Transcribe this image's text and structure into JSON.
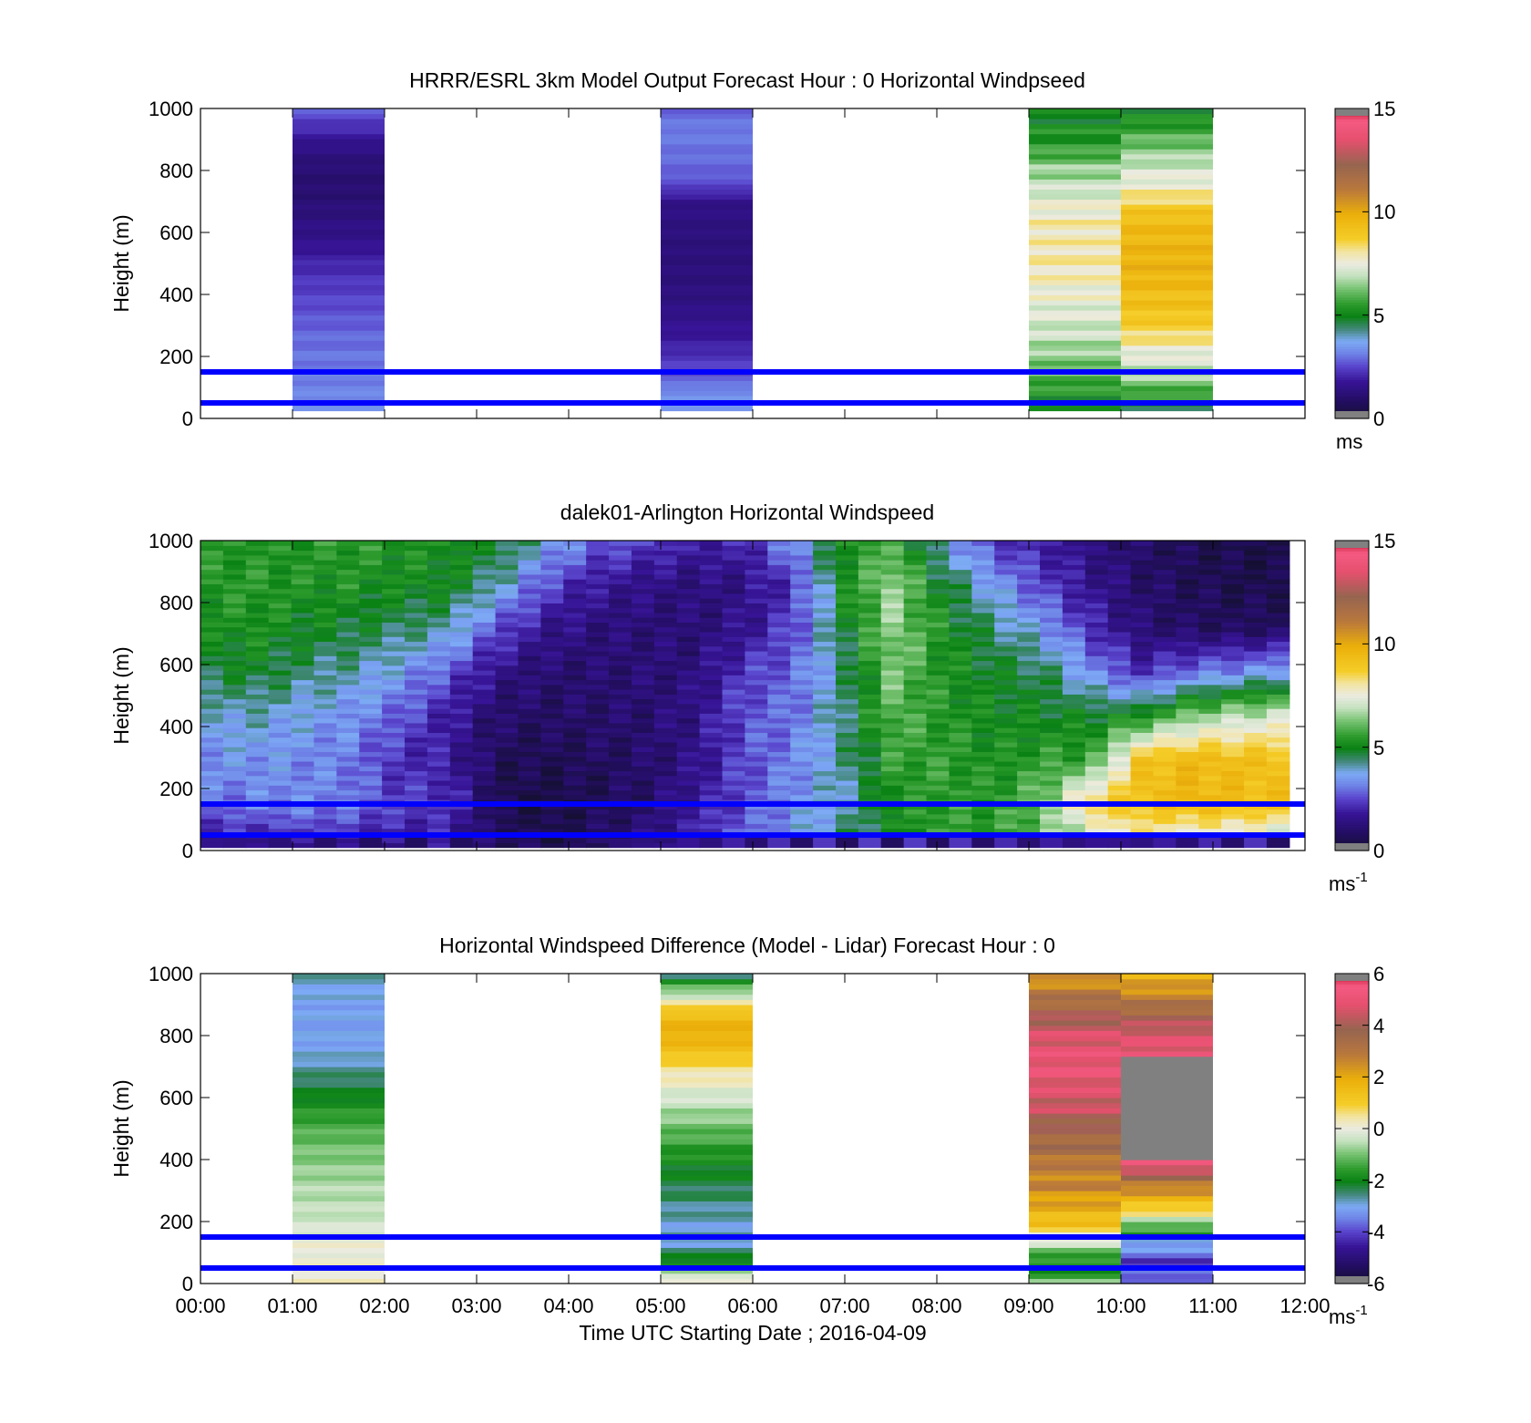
{
  "figure": {
    "background": "#ffffff",
    "xlabel": "Time UTC  Starting Date ; 2016-04-09",
    "xticks": [
      "00:00",
      "01:00",
      "02:00",
      "03:00",
      "04:00",
      "05:00",
      "06:00",
      "07:00",
      "08:00",
      "09:00",
      "10:00",
      "11:00",
      "12:00"
    ],
    "ylabel": "Height (m)",
    "yticks": [
      "0",
      "200",
      "400",
      "600",
      "800",
      "1000"
    ]
  },
  "chart_data": [
    {
      "type": "heatmap",
      "title": "HRRR/ESRL 3km Model Output   Forecast Hour : 0 Horizontal Windpseed",
      "ylabel": "Height (m)",
      "xlim_hours": [
        0,
        12
      ],
      "ylim": [
        0,
        1000
      ],
      "colorbar": {
        "ticks": [
          "0",
          "5",
          "10",
          "15"
        ],
        "range": [
          0,
          15
        ],
        "unit_label": "ms",
        "unit_sup": ""
      },
      "reference_lines_m": [
        50,
        150
      ],
      "reference_line_color": "#0000ff",
      "columns": [
        {
          "x0": 1.0,
          "x1": 2.0,
          "y0": 25,
          "y1": 1000,
          "base": [
            3.3,
            3.2,
            3.1,
            3.0,
            2.9,
            2.7,
            2.5,
            2.3,
            2.0,
            1.6,
            1.4,
            1.2,
            1.1,
            1.2,
            1.5,
            2.2,
            2.8
          ],
          "wave": 0.15
        },
        {
          "x0": 5.0,
          "x1": 6.0,
          "y0": 25,
          "y1": 1000,
          "base": [
            3.6,
            3.3,
            2.6,
            2.2,
            1.8,
            1.6,
            1.4,
            1.3,
            1.3,
            1.3,
            1.4,
            1.5,
            2.6,
            2.9,
            3.0,
            3.1,
            2.8
          ],
          "wave": 0.12
        },
        {
          "x0": 9.0,
          "x1": 10.0,
          "y0": 25,
          "y1": 1000,
          "base": [
            4.6,
            5.4,
            6.1,
            6.5,
            7.0,
            7.2,
            7.5,
            7.8,
            8.0,
            7.9,
            7.9,
            7.4,
            6.9,
            6.4,
            5.5,
            5.2,
            4.8
          ],
          "wave": 0.45
        },
        {
          "x0": 10.0,
          "x1": 11.0,
          "y0": 25,
          "y1": 1000,
          "base": [
            4.6,
            5.8,
            6.8,
            7.4,
            8.4,
            9.0,
            9.3,
            9.6,
            9.7,
            9.6,
            9.4,
            8.6,
            7.6,
            7.0,
            6.3,
            5.6,
            4.9
          ],
          "wave": 0.4
        }
      ]
    },
    {
      "type": "heatmap",
      "title": "dalek01-Arlington  Horizontal Windspeed",
      "ylabel": "Height (m)",
      "xlim_hours": [
        0,
        12
      ],
      "ylim": [
        0,
        1000
      ],
      "colorbar": {
        "ticks": [
          "0",
          "5",
          "10",
          "15"
        ],
        "range": [
          0,
          15
        ],
        "unit_label": "ms",
        "unit_sup": "-1"
      },
      "reference_lines_m": [
        50,
        150
      ],
      "reference_line_color": "#0000ff",
      "profiles": [
        [
          1.5,
          3.0,
          3.3,
          3.8,
          4.6,
          5.1,
          5.4,
          5.4
        ],
        [
          1.7,
          3.1,
          3.5,
          4.0,
          4.9,
          5.3,
          5.5,
          5.3
        ],
        [
          1.9,
          3.3,
          3.3,
          3.7,
          4.4,
          5.0,
          5.3,
          5.4
        ],
        [
          1.8,
          3.1,
          3.1,
          3.4,
          4.1,
          4.8,
          5.3,
          5.5
        ],
        [
          1.7,
          2.4,
          2.2,
          2.8,
          3.6,
          4.5,
          5.1,
          5.4
        ],
        [
          1.7,
          2.4,
          1.9,
          1.9,
          2.7,
          4.1,
          5.1,
          5.1
        ],
        [
          0.9,
          0.5,
          0.7,
          1.0,
          1.5,
          2.6,
          4.1,
          5.0
        ],
        [
          0.5,
          0.4,
          0.6,
          0.9,
          1.1,
          1.6,
          2.6,
          3.8
        ],
        [
          1.0,
          0.6,
          0.8,
          1.0,
          1.1,
          1.3,
          1.8,
          2.9
        ],
        [
          1.4,
          1.0,
          1.0,
          1.1,
          1.2,
          1.2,
          1.5,
          2.4
        ],
        [
          2.3,
          1.8,
          1.5,
          1.5,
          1.3,
          1.2,
          1.3,
          2.0
        ],
        [
          2.9,
          2.6,
          2.6,
          2.7,
          2.4,
          1.6,
          1.5,
          2.0
        ],
        [
          3.6,
          3.4,
          3.2,
          3.0,
          2.9,
          2.6,
          2.3,
          3.5
        ],
        [
          4.4,
          4.0,
          4.2,
          4.4,
          4.3,
          4.8,
          5.2,
          5.2
        ],
        [
          5.0,
          5.2,
          5.6,
          6.0,
          6.3,
          6.5,
          6.6,
          5.8
        ],
        [
          5.6,
          5.6,
          5.6,
          5.4,
          5.3,
          5.3,
          4.8,
          3.8
        ],
        [
          5.6,
          5.4,
          5.2,
          5.1,
          4.9,
          4.4,
          3.6,
          2.4
        ],
        [
          5.9,
          6.2,
          5.6,
          5.0,
          4.6,
          3.6,
          2.5,
          1.9
        ],
        [
          6.6,
          8.6,
          5.6,
          4.9,
          3.4,
          2.2,
          1.6,
          1.4
        ],
        [
          7.4,
          9.2,
          9.1,
          5.2,
          2.2,
          1.2,
          1.0,
          0.9
        ],
        [
          6.6,
          9.6,
          9.5,
          6.4,
          3.0,
          0.9,
          0.7,
          0.6
        ],
        [
          6.5,
          9.4,
          9.3,
          6.9,
          3.4,
          0.8,
          0.5,
          0.5
        ],
        [
          6.1,
          9.2,
          9.2,
          7.2,
          3.8,
          0.9,
          0.5,
          0.4
        ]
      ]
    },
    {
      "type": "heatmap",
      "title": "Horizontal Windspeed Difference (Model - Lidar) Forecast Hour : 0",
      "ylabel": "Height (m)",
      "xlim_hours": [
        0,
        12
      ],
      "ylim": [
        0,
        1000
      ],
      "colorbar": {
        "ticks": [
          "6",
          "4",
          "2",
          "0",
          "-2",
          "-4",
          "-6"
        ],
        "range": [
          -6,
          6
        ],
        "unit_label": "ms",
        "unit_sup": "-1"
      },
      "reference_lines_m": [
        50,
        150
      ],
      "reference_line_color": "#0000ff",
      "columns": [
        {
          "x0": 1.0,
          "x1": 2.0,
          "y0": 0,
          "y1": 1000,
          "base": [
            0.2,
            0.1,
            0.0,
            -0.3,
            -0.5,
            -0.6,
            -0.8,
            -1.0,
            -1.3,
            -1.7,
            -2.2,
            -2.6,
            -3.0,
            -3.1,
            -3.1,
            -3.0,
            -2.7
          ],
          "wave": 0.2
        },
        {
          "x0": 5.0,
          "x1": 6.0,
          "y0": 0,
          "y1": 1000,
          "base": [
            0.6,
            -1.8,
            -2.8,
            -2.9,
            -2.6,
            -2.3,
            -2.0,
            -1.6,
            -1.1,
            -0.6,
            -0.1,
            0.5,
            1.4,
            1.9,
            1.4,
            -0.6,
            -2.6
          ],
          "wave": 0.25
        },
        {
          "x0": 9.0,
          "x1": 10.0,
          "y0": 0,
          "y1": 1000,
          "base": [
            -1.0,
            -2.0,
            -0.6,
            1.2,
            2.0,
            2.6,
            2.8,
            3.4,
            3.7,
            4.4,
            4.7,
            5.0,
            4.9,
            4.6,
            3.8,
            3.0,
            2.1
          ],
          "wave": 0.4
        },
        {
          "x0": 10.0,
          "x1": 11.0,
          "y0": 0,
          "y1": 1000,
          "base": [
            -3.3,
            -4.2,
            -3.1,
            -1.1,
            1.2,
            2.7,
            4.7,
            8.0,
            8.0,
            8.0,
            8.0,
            8.0,
            4.9,
            4.6,
            3.6,
            2.6,
            1.7
          ],
          "wave": 0.4
        }
      ]
    }
  ]
}
